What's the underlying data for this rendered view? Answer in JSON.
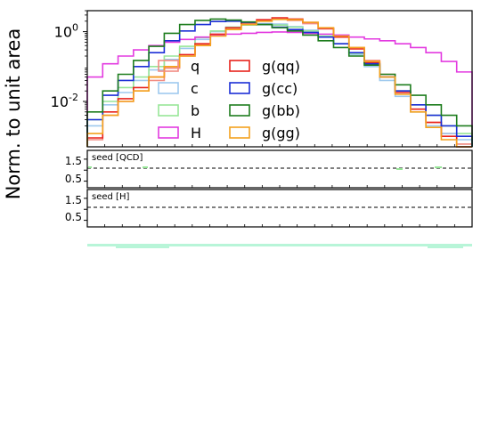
{
  "chart_data": [
    {
      "type": "line",
      "subtype": "step-histogram",
      "ylabel": "Norm. to unit area",
      "yscale": "log",
      "ylim": [
        0.0005,
        4
      ],
      "ytick_labels": [
        "10^0",
        "10^-2"
      ],
      "ytick_values": [
        1,
        0.01
      ],
      "bins": 25,
      "legend_placement": "center",
      "legend_columns": 2,
      "series": [
        {
          "name": "q",
          "color": "#f28b82",
          "values": [
            0.0008,
            0.004,
            0.01,
            0.02,
            0.04,
            0.09,
            0.2,
            0.42,
            0.8,
            1.2,
            1.65,
            2.0,
            2.3,
            2.1,
            1.7,
            1.2,
            0.7,
            0.35,
            0.15,
            0.06,
            0.02,
            0.006,
            0.0025,
            0.0012,
            0.0006
          ]
        },
        {
          "name": "c",
          "color": "#9ec9ee",
          "values": [
            0.002,
            0.008,
            0.018,
            0.04,
            0.08,
            0.16,
            0.33,
            0.6,
            1.0,
            1.35,
            1.6,
            1.7,
            1.65,
            1.4,
            1.1,
            0.75,
            0.45,
            0.22,
            0.1,
            0.04,
            0.014,
            0.005,
            0.002,
            0.0012,
            0.0008
          ]
        },
        {
          "name": "b",
          "color": "#98e698",
          "values": [
            0.003,
            0.01,
            0.025,
            0.05,
            0.1,
            0.2,
            0.38,
            0.68,
            1.05,
            1.35,
            1.55,
            1.6,
            1.55,
            1.35,
            1.05,
            0.75,
            0.45,
            0.24,
            0.12,
            0.05,
            0.02,
            0.008,
            0.004,
            0.002,
            0.0012
          ]
        },
        {
          "name": "H",
          "color": "#e33be0",
          "values": [
            0.05,
            0.12,
            0.2,
            0.3,
            0.4,
            0.5,
            0.6,
            0.7,
            0.8,
            0.85,
            0.9,
            0.95,
            0.98,
            0.95,
            0.9,
            0.85,
            0.8,
            0.7,
            0.62,
            0.55,
            0.45,
            0.35,
            0.25,
            0.14,
            0.07
          ]
        },
        {
          "name": "g(qq)",
          "color": "#e8231c",
          "values": [
            0.0009,
            0.005,
            0.012,
            0.025,
            0.05,
            0.1,
            0.22,
            0.45,
            0.85,
            1.3,
            1.8,
            2.2,
            2.5,
            2.3,
            1.85,
            1.25,
            0.7,
            0.32,
            0.13,
            0.05,
            0.018,
            0.006,
            0.0025,
            0.001,
            0.0005
          ]
        },
        {
          "name": "g(cc)",
          "color": "#1c2fd6",
          "values": [
            0.003,
            0.015,
            0.04,
            0.1,
            0.25,
            0.55,
            1.05,
            1.6,
            1.95,
            2.0,
            1.85,
            1.6,
            1.35,
            1.15,
            0.95,
            0.7,
            0.45,
            0.25,
            0.12,
            0.05,
            0.02,
            0.008,
            0.004,
            0.002,
            0.001
          ]
        },
        {
          "name": "g(bb)",
          "color": "#1e7d1e",
          "values": [
            0.005,
            0.02,
            0.06,
            0.15,
            0.38,
            0.9,
            1.6,
            2.1,
            2.3,
            2.15,
            1.9,
            1.6,
            1.3,
            1.05,
            0.8,
            0.55,
            0.35,
            0.2,
            0.11,
            0.06,
            0.03,
            0.015,
            0.008,
            0.004,
            0.002
          ]
        },
        {
          "name": "g(gg)",
          "color": "#f4a21e",
          "values": [
            0.0012,
            0.004,
            0.01,
            0.02,
            0.05,
            0.1,
            0.2,
            0.4,
            0.75,
            1.15,
            1.6,
            2.0,
            2.25,
            2.2,
            1.85,
            1.3,
            0.75,
            0.35,
            0.14,
            0.05,
            0.016,
            0.005,
            0.0018,
            0.0008,
            0.0005
          ]
        }
      ]
    },
    {
      "type": "line",
      "subtype": "ratio",
      "annotation": "seed [QCD]",
      "ytick_labels": [
        "1.5",
        "0.5"
      ],
      "ytick_values": [
        1.5,
        0.5
      ],
      "ylim": [
        0.2,
        1.9
      ],
      "reference_line": 1.0
    },
    {
      "type": "line",
      "subtype": "ratio",
      "annotation": "seed [H]",
      "ytick_labels": [
        "1.5",
        "0.5"
      ],
      "ytick_values": [
        1.5,
        0.5
      ],
      "ylim": [
        0.2,
        1.9
      ],
      "reference_line": 1.0
    }
  ]
}
